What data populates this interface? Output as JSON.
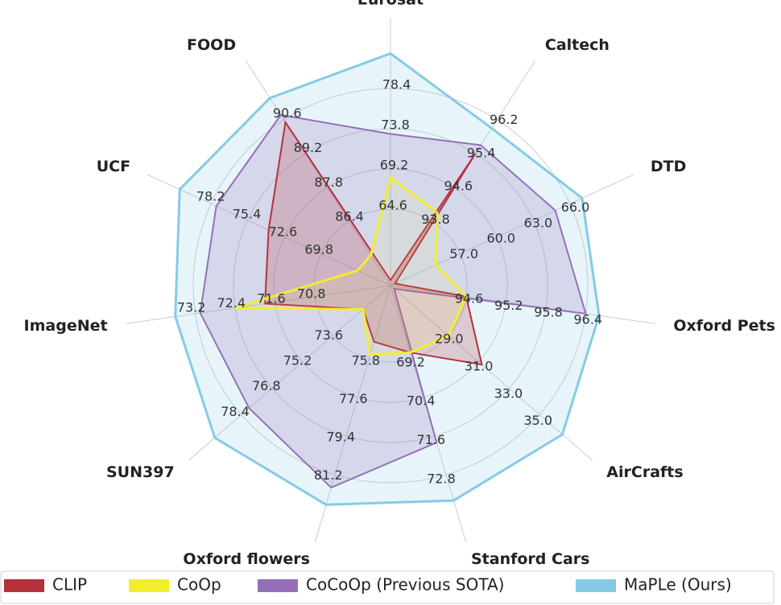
{
  "chart_data": {
    "type": "radar",
    "axes": [
      {
        "label": "Eurosat",
        "ticks": [
          "64.6",
          "69.2",
          "73.8",
          "78.4"
        ]
      },
      {
        "label": "Caltech",
        "ticks": [
          "93.8",
          "94.6",
          "95.4",
          "96.2"
        ]
      },
      {
        "label": "DTD",
        "ticks": [
          "57.0",
          "60.0",
          "63.0",
          "66.0"
        ]
      },
      {
        "label": "Oxford Pets",
        "ticks": [
          "94.6",
          "95.2",
          "95.8",
          "96.4"
        ]
      },
      {
        "label": "AirCrafts",
        "ticks": [
          "29.0",
          "31.0",
          "33.0",
          "35.0"
        ]
      },
      {
        "label": "Stanford Cars",
        "ticks": [
          "69.2",
          "70.4",
          "71.6",
          "72.8"
        ]
      },
      {
        "label": "Oxford flowers",
        "ticks": [
          "75.8",
          "77.6",
          "79.4",
          "81.2"
        ]
      },
      {
        "label": "SUN397",
        "ticks": [
          "73.6",
          "75.2",
          "76.8",
          "78.4"
        ]
      },
      {
        "label": "ImageNet",
        "ticks": [
          "70.8",
          "71.6",
          "72.4",
          "73.2"
        ]
      },
      {
        "label": "UCF",
        "ticks": [
          "69.8",
          "72.6",
          "75.4",
          "78.2"
        ]
      },
      {
        "label": "FOOD",
        "ticks": [
          "86.4",
          "87.8",
          "89.2",
          "90.6"
        ]
      }
    ],
    "series": [
      {
        "name": "CLIP",
        "color": "#b5313b",
        "values": [
          56.48,
          95.4,
          50.0,
          94.6,
          31.2,
          69.0,
          75.0,
          72.0,
          71.8,
          73.8,
          90.5
        ]
      },
      {
        "name": "CoOp",
        "color": "#f1ee2e",
        "values": [
          68.2,
          94.0,
          55.0,
          94.6,
          29.0,
          69.0,
          75.6,
          72.0,
          72.4,
          67.0,
          85.0
        ]
      },
      {
        "name": "CoCoOp (Previous SOTA)",
        "color": "#9570b8",
        "values": [
          73.2,
          95.6,
          64.8,
          96.4,
          23.2,
          71.8,
          81.8,
          78.0,
          73.1,
          77.8,
          90.8
        ]
      },
      {
        "name": "MaPLe (Ours)",
        "color": "#85cbe6",
        "values": [
          82.4,
          96.0,
          67.0,
          96.6,
          36.5,
          73.6,
          82.6,
          79.8,
          73.6,
          80.6,
          91.5
        ]
      }
    ],
    "grid_rings": 4,
    "legend_position": "bottom"
  }
}
